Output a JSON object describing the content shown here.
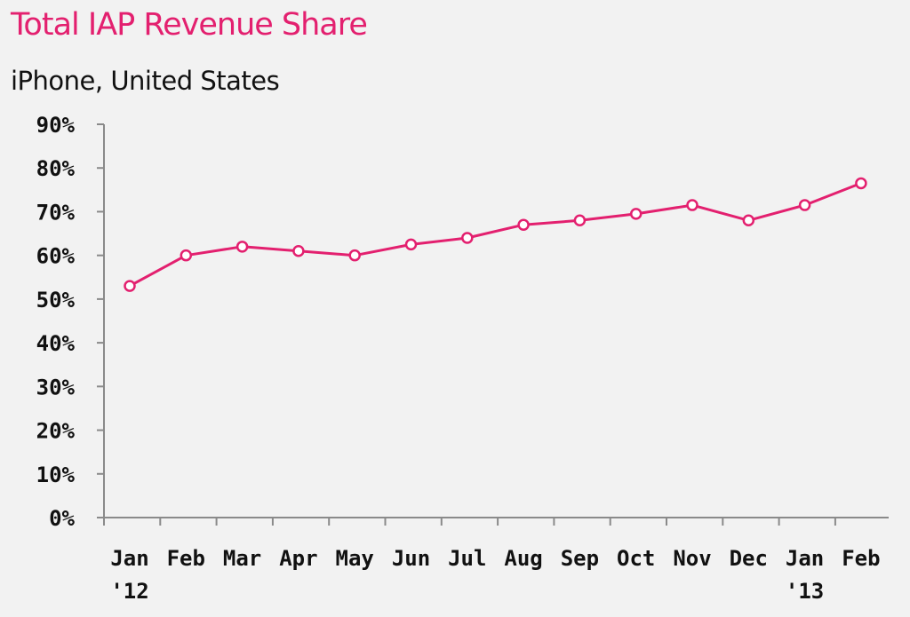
{
  "chart_data": {
    "type": "line",
    "title": "Total IAP Revenue Share",
    "subtitle": "iPhone, United States",
    "xlabel": "",
    "ylabel": "",
    "categories": [
      [
        "Jan",
        "'12"
      ],
      [
        "Feb"
      ],
      [
        "Mar"
      ],
      [
        "Apr"
      ],
      [
        "May"
      ],
      [
        "Jun"
      ],
      [
        "Jul"
      ],
      [
        "Aug"
      ],
      [
        "Sep"
      ],
      [
        "Oct"
      ],
      [
        "Nov"
      ],
      [
        "Dec"
      ],
      [
        "Jan",
        "'13"
      ],
      [
        "Feb"
      ]
    ],
    "y_tick_labels": [
      "0%",
      "10%",
      "20%",
      "30%",
      "40%",
      "50%",
      "60%",
      "70%",
      "80%",
      "90%"
    ],
    "ylim": [
      0,
      90
    ],
    "series": [
      {
        "values": [
          53,
          60,
          62,
          61,
          60,
          62.5,
          64,
          67,
          68,
          69.5,
          71.5,
          68,
          71.5,
          76.5
        ]
      }
    ],
    "grid": false,
    "legend": "none",
    "colors": {
      "line": "#e3206f",
      "title": "#e3206f",
      "text": "#111111",
      "axis": "#8a8a8a",
      "marker_fill": "#ffffff",
      "background": "#f2f2f2"
    }
  }
}
